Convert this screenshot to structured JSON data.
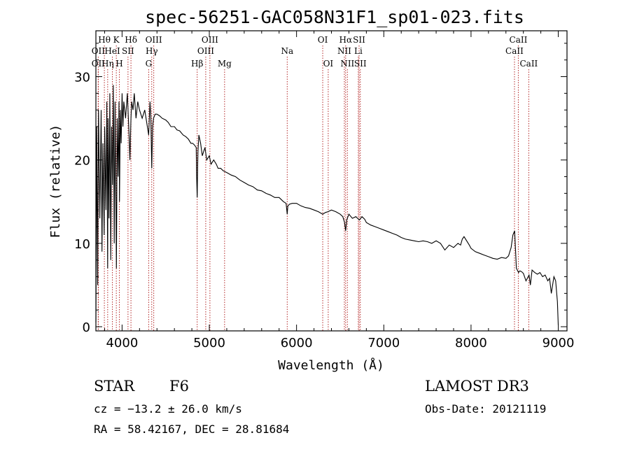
{
  "chart_data": {
    "type": "line",
    "title": "spec-56251-GAC058N31F1_sp01-023.fits",
    "xlabel": "Wavelength (Å)",
    "ylabel": "Flux (relative)",
    "xlim": [
      3700,
      9100
    ],
    "ylim": [
      -0.5,
      35.5
    ],
    "xticks": [
      4000,
      5000,
      6000,
      7000,
      8000,
      9000
    ],
    "yticks": [
      0,
      10,
      20,
      30
    ],
    "spectrum": {
      "x": [
        3700,
        3710,
        3720,
        3730,
        3745,
        3760,
        3770,
        3780,
        3795,
        3800,
        3815,
        3825,
        3835,
        3840,
        3850,
        3860,
        3870,
        3880,
        3890,
        3900,
        3910,
        3920,
        3935,
        3945,
        3955,
        3965,
        3970,
        3980,
        3990,
        4000,
        4010,
        4020,
        4040,
        4060,
        4080,
        4090,
        4102,
        4110,
        4125,
        4140,
        4160,
        4180,
        4200,
        4230,
        4260,
        4290,
        4305,
        4320,
        4330,
        4340,
        4350,
        4360,
        4380,
        4400,
        4430,
        4460,
        4500,
        4530,
        4560,
        4600,
        4630,
        4660,
        4700,
        4730,
        4760,
        4790,
        4810,
        4830,
        4850,
        4855,
        4861,
        4866,
        4870,
        4880,
        4900,
        4920,
        4950,
        4970,
        5000,
        5020,
        5050,
        5080,
        5100,
        5130,
        5160,
        5200,
        5250,
        5300,
        5350,
        5400,
        5450,
        5500,
        5550,
        5600,
        5650,
        5700,
        5750,
        5800,
        5850,
        5880,
        5893,
        5900,
        5920,
        5950,
        6000,
        6050,
        6100,
        6150,
        6200,
        6250,
        6300,
        6330,
        6360,
        6400,
        6450,
        6500,
        6530,
        6550,
        6563,
        6575,
        6600,
        6640,
        6680,
        6700,
        6720,
        6750,
        6780,
        6800,
        6850,
        6900,
        6950,
        7000,
        7050,
        7100,
        7150,
        7200,
        7250,
        7300,
        7350,
        7400,
        7450,
        7500,
        7550,
        7600,
        7650,
        7700,
        7750,
        7800,
        7850,
        7880,
        7900,
        7920,
        7950,
        7980,
        8000,
        8050,
        8100,
        8150,
        8200,
        8250,
        8300,
        8350,
        8400,
        8430,
        8460,
        8480,
        8500,
        8520,
        8530,
        8545,
        8560,
        8580,
        8600,
        8630,
        8665,
        8680,
        8700,
        8730,
        8760,
        8790,
        8820,
        8850,
        8880,
        8900,
        8920,
        8950,
        8970,
        8990,
        9000
      ],
      "y": [
        0.5,
        24,
        5,
        26,
        13,
        26,
        9,
        22,
        11,
        24,
        14,
        27,
        7,
        25,
        13,
        28,
        8,
        24,
        17,
        29,
        10,
        27,
        7,
        25,
        18,
        27,
        15,
        26,
        22,
        28,
        24,
        27,
        25,
        28,
        23,
        20,
        25,
        27,
        26,
        28,
        25,
        27,
        26,
        25,
        26,
        24,
        23,
        27,
        25,
        19,
        24,
        25,
        25.5,
        25.5,
        25.3,
        25,
        24.8,
        24.5,
        24,
        24,
        23.6,
        23.5,
        23,
        22.8,
        22.5,
        22,
        22,
        21.8,
        21.5,
        18,
        15.5,
        19,
        21,
        23,
        22,
        20.5,
        21.5,
        20,
        20.5,
        19.5,
        20,
        19.5,
        19,
        19,
        18.7,
        18.5,
        18.2,
        18,
        17.6,
        17.3,
        17,
        16.8,
        16.4,
        16.3,
        16,
        15.8,
        15.5,
        15.5,
        15,
        14.8,
        13.5,
        14.5,
        14.7,
        14.8,
        14.8,
        14.5,
        14.3,
        14.2,
        14,
        13.8,
        13.5,
        13.7,
        13.8,
        14,
        13.8,
        13.5,
        13.2,
        12.5,
        11.5,
        12.8,
        13.5,
        13,
        13.2,
        13,
        12.8,
        13.2,
        12.9,
        12.5,
        12.2,
        12,
        11.8,
        11.6,
        11.4,
        11.2,
        11,
        10.7,
        10.5,
        10.4,
        10.3,
        10.2,
        10.3,
        10.2,
        10,
        10.3,
        10,
        9.2,
        9.8,
        9.5,
        10,
        9.8,
        10.5,
        10.8,
        10.3,
        9.8,
        9.4,
        9,
        8.8,
        8.6,
        8.4,
        8.2,
        8.1,
        8.3,
        8.2,
        8.5,
        9.5,
        11,
        11.5,
        7,
        6.8,
        6.5,
        6.7,
        6.6,
        6.4,
        5.5,
        6.2,
        5,
        6.8,
        6.5,
        6.3,
        6.5,
        6,
        6.2,
        5.5,
        5.8,
        4,
        6,
        5.5,
        3,
        0.2
      ]
    },
    "lines": [
      {
        "label": "Hθ",
        "wave": 3797,
        "row": 1
      },
      {
        "label": "OII",
        "wave": 3727,
        "row": 2
      },
      {
        "label": "OII",
        "wave": 3727,
        "row": 3
      },
      {
        "label": "Hη",
        "wave": 3835,
        "row": 3
      },
      {
        "label": "K",
        "wave": 3934,
        "row": 1
      },
      {
        "label": "HeI",
        "wave": 3889,
        "row": 2
      },
      {
        "label": "H",
        "wave": 3969,
        "row": 3
      },
      {
        "label": "SII",
        "wave": 4068,
        "row": 2
      },
      {
        "label": "Hδ",
        "wave": 4102,
        "row": 1
      },
      {
        "label": "OIII",
        "wave": 4363,
        "row": 1
      },
      {
        "label": "Hγ",
        "wave": 4340,
        "row": 2
      },
      {
        "label": "G",
        "wave": 4305,
        "row": 3
      },
      {
        "label": "Hβ",
        "wave": 4861,
        "row": 3
      },
      {
        "label": "OIII",
        "wave": 5007,
        "row": 1
      },
      {
        "label": "OIII",
        "wave": 4959,
        "row": 2
      },
      {
        "label": "Mg",
        "wave": 5175,
        "row": 3
      },
      {
        "label": "Na",
        "wave": 5893,
        "row": 2
      },
      {
        "label": "OI",
        "wave": 6300,
        "row": 1
      },
      {
        "label": "OI",
        "wave": 6363,
        "row": 3
      },
      {
        "label": "Hα",
        "wave": 6563,
        "row": 1
      },
      {
        "label": "NII",
        "wave": 6548,
        "row": 2
      },
      {
        "label": "NII",
        "wave": 6583,
        "row": 3
      },
      {
        "label": "SII",
        "wave": 6717,
        "row": 1
      },
      {
        "label": "Li",
        "wave": 6708,
        "row": 2
      },
      {
        "label": "SII",
        "wave": 6731,
        "row": 3
      },
      {
        "label": "CaII",
        "wave": 8542,
        "row": 1
      },
      {
        "label": "CaII",
        "wave": 8498,
        "row": 2
      },
      {
        "label": "CaII",
        "wave": 8662,
        "row": 3
      }
    ],
    "line_color": "#b42828",
    "spectrum_color": "#000000"
  },
  "info": {
    "class_label": "STAR",
    "subclass": "F6",
    "survey": "LAMOST DR3",
    "cz": "cz = −13.2 ± 26.0 km/s",
    "obs_date": "Obs-Date: 20121119",
    "coords": "RA =  58.42167, DEC =  28.81684"
  }
}
